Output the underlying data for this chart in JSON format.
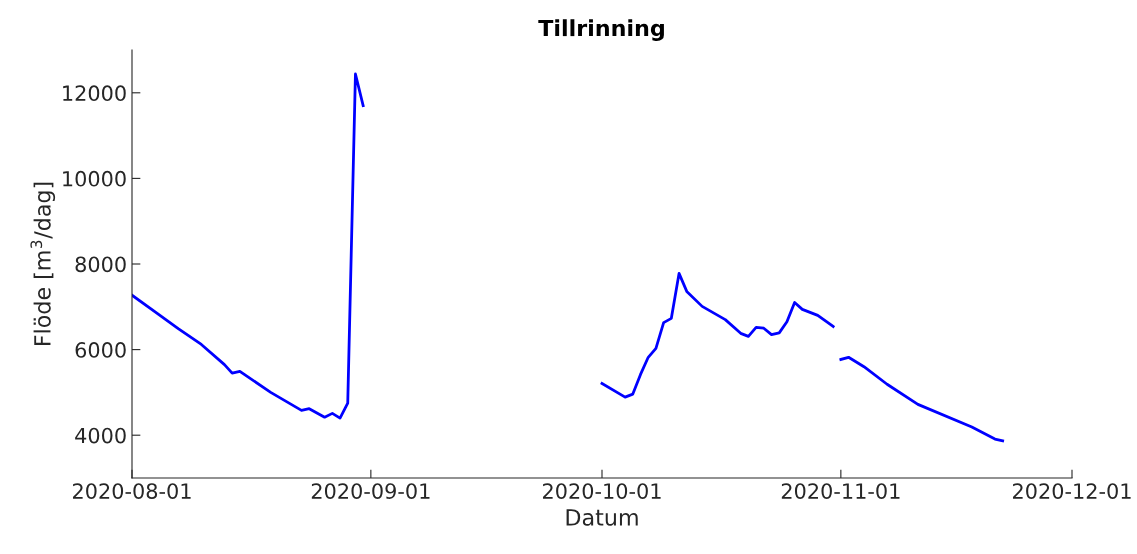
{
  "chart_data": {
    "type": "line",
    "title": "Tillrinning",
    "xlabel": "Datum",
    "ylabel": "Flöde [m$^{3}$/dag]",
    "x": [
      "2020-08-01",
      "2020-08-04",
      "2020-08-07",
      "2020-08-10",
      "2020-08-13",
      "2020-08-14",
      "2020-08-15",
      "2020-08-19",
      "2020-08-23",
      "2020-08-24",
      "2020-08-26",
      "2020-08-27",
      "2020-08-28",
      "2020-08-29",
      "2020-08-30",
      "2020-08-31",
      "2020-09-15",
      "2020-10-01",
      "2020-10-04",
      "2020-10-05",
      "2020-10-06",
      "2020-10-07",
      "2020-10-08",
      "2020-10-09",
      "2020-10-10",
      "2020-10-11",
      "2020-10-12",
      "2020-10-14",
      "2020-10-17",
      "2020-10-19",
      "2020-10-20",
      "2020-10-21",
      "2020-10-22",
      "2020-10-23",
      "2020-10-24",
      "2020-10-25",
      "2020-10-26",
      "2020-10-27",
      "2020-10-29",
      "2020-10-31",
      "2020-10-31T12:00",
      "2020-11-01",
      "2020-11-02",
      "2020-11-04",
      "2020-11-07",
      "2020-11-11",
      "2020-11-18",
      "2020-11-21",
      "2020-11-22"
    ],
    "series": [
      {
        "color": "#0000ff",
        "values": [
          7270,
          6880,
          6490,
          6120,
          5650,
          5450,
          5490,
          5000,
          4580,
          4620,
          4420,
          4510,
          4400,
          4750,
          12440,
          11700,
          null,
          5210,
          4890,
          4960,
          5420,
          5820,
          6030,
          6630,
          6730,
          7780,
          7360,
          7010,
          6700,
          6380,
          6310,
          6520,
          6500,
          6350,
          6390,
          6650,
          7100,
          6940,
          6800,
          6540,
          null,
          5770,
          5820,
          5600,
          5190,
          4720,
          4190,
          3910,
          3870
        ]
      }
    ],
    "xlim": [
      "2020-08-01",
      "2020-12-01"
    ],
    "xticks": [
      {
        "value": "2020-08-01",
        "label": "2020-08-01"
      },
      {
        "value": "2020-09-01",
        "label": "2020-09-01"
      },
      {
        "value": "2020-10-01",
        "label": "2020-10-01"
      },
      {
        "value": "2020-11-01",
        "label": "2020-11-01"
      },
      {
        "value": "2020-12-01",
        "label": "2020-12-01"
      }
    ],
    "ylim": [
      3000,
      13000
    ],
    "yticks": [
      4000,
      6000,
      8000,
      10000,
      12000
    ],
    "grid": false,
    "marker": "none",
    "line_style": "solid",
    "legend": false
  }
}
